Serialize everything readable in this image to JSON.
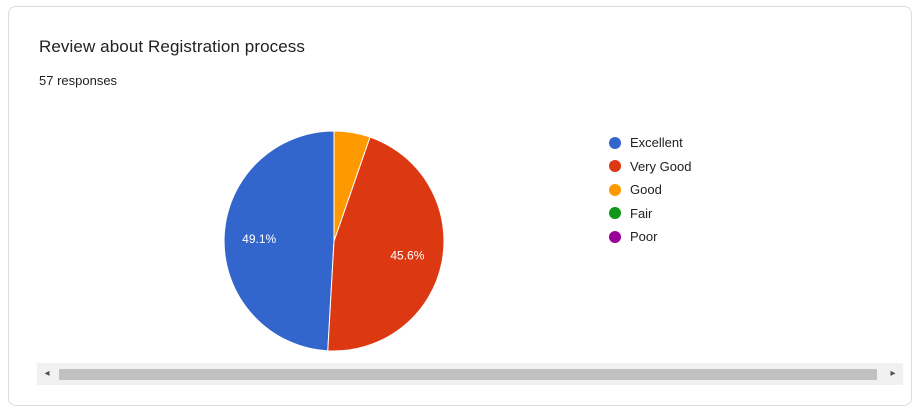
{
  "card": {
    "title": "Review about Registration process",
    "subtitle": "57 responses"
  },
  "scrollbar": {
    "left_arrow": "◂",
    "right_arrow": "▸"
  },
  "chart_data": {
    "type": "pie",
    "title": "Review about Registration process",
    "subtitle": "57 responses",
    "legend_position": "right",
    "start_angle_deg": 90,
    "slices": [
      {
        "label": "Excellent",
        "percent": 49.1,
        "color": "#3366cc",
        "show_label": true
      },
      {
        "label": "Very Good",
        "percent": 45.6,
        "color": "#dc3912",
        "show_label": true
      },
      {
        "label": "Good",
        "percent": 5.3,
        "color": "#ff9900",
        "show_label": false
      },
      {
        "label": "Fair",
        "percent": 0,
        "color": "#109618",
        "show_label": false
      },
      {
        "label": "Poor",
        "percent": 0,
        "color": "#990099",
        "show_label": false
      }
    ]
  }
}
